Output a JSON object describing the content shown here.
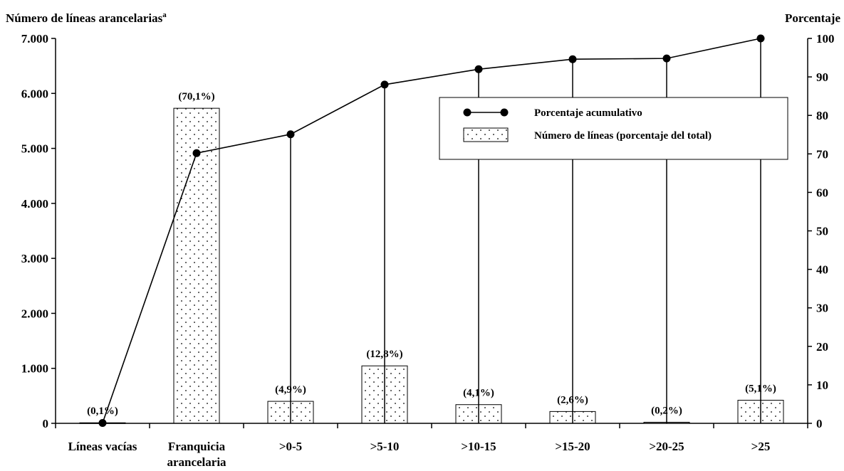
{
  "chart_data": {
    "type": "bar",
    "left_axis_title": "Número de líneas arancelarias",
    "left_axis_title_superscript": "a",
    "right_axis_title": "Porcentaje",
    "categories": [
      [
        "Líneas vacías"
      ],
      [
        "Franquicia",
        "arancelaria"
      ],
      [
        ">0-5"
      ],
      [
        ">5-10"
      ],
      [
        ">10-15"
      ],
      [
        ">15-20"
      ],
      [
        ">20-25"
      ],
      [
        ">25"
      ]
    ],
    "y_left": {
      "range": [
        0,
        7000
      ],
      "ticks": [
        0,
        1000,
        2000,
        3000,
        4000,
        5000,
        6000,
        7000
      ],
      "tick_labels": [
        "0",
        "1.000",
        "2.000",
        "3.000",
        "4.000",
        "5.000",
        "6.000",
        "7.000"
      ]
    },
    "y_right": {
      "range": [
        0,
        100
      ],
      "ticks": [
        0,
        10,
        20,
        30,
        40,
        50,
        60,
        70,
        80,
        90,
        100
      ],
      "tick_labels": [
        "0",
        "10",
        "20",
        "30",
        "40",
        "50",
        "60",
        "70",
        "80",
        "90",
        "100"
      ]
    },
    "series": [
      {
        "name": "Número de líneas (porcentaje del total)",
        "type": "bar",
        "axis": "left",
        "values": [
          10,
          5730,
          400,
          1045,
          340,
          215,
          20,
          420
        ],
        "labels": [
          "(0,1%)",
          "(70,1%)",
          "(4,9%)",
          "(12,8%)",
          "(4,1%)",
          "(2,6%)",
          "(0,2%)",
          "(5,1%)"
        ]
      },
      {
        "name": "Porcentaje acumulativo",
        "type": "line",
        "axis": "right",
        "values": [
          0.1,
          70.2,
          75.1,
          88.0,
          92.0,
          94.6,
          94.8,
          100.0
        ]
      }
    ],
    "legend": {
      "position": "top-right"
    },
    "grid": false
  }
}
